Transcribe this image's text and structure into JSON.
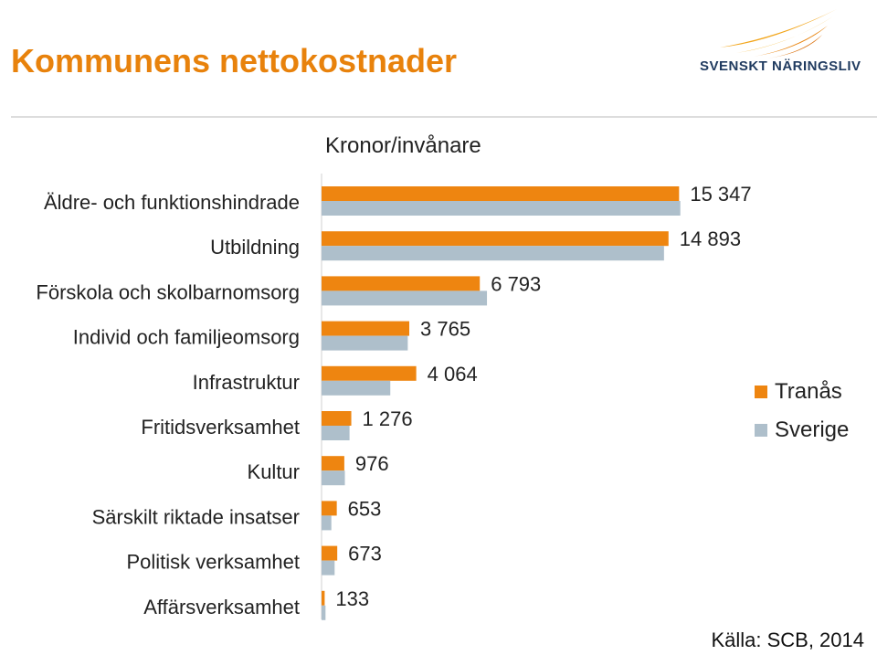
{
  "header": {
    "title": "Kommunens nettokostnader",
    "logo_text": "SVENSKT NÄRINGSLIV"
  },
  "colors": {
    "title": "#e8820c",
    "series_1": "#ee8510",
    "series_2": "#aebfcb"
  },
  "footer": {
    "source": "Källa: SCB, 2014"
  },
  "chart_data": {
    "type": "bar",
    "orientation": "horizontal",
    "title": "Kronor/invånare",
    "categories": [
      "Äldre- och funktionshindrade",
      "Utbildning",
      "Förskola och skolbarnomsorg",
      "Individ och familjeomsorg",
      "Infrastruktur",
      "Fritidsverksamhet",
      "Kultur",
      "Särskilt riktade insatser",
      "Politisk verksamhet",
      "Affärsverksamhet"
    ],
    "series": [
      {
        "name": "Tranås",
        "values": [
          15347,
          14893,
          6793,
          3765,
          4064,
          1276,
          976,
          653,
          673,
          133
        ],
        "labels": [
          "15 347",
          "14 893",
          "6 793",
          "3 765",
          "4 064",
          "1 276",
          "976",
          "653",
          "673",
          "133"
        ]
      },
      {
        "name": "Sverige",
        "values": [
          15400,
          14700,
          7100,
          3700,
          2950,
          1200,
          1000,
          420,
          560,
          170
        ]
      }
    ],
    "xlim": [
      0,
      16000
    ],
    "legend_position": "right",
    "grid": false
  }
}
